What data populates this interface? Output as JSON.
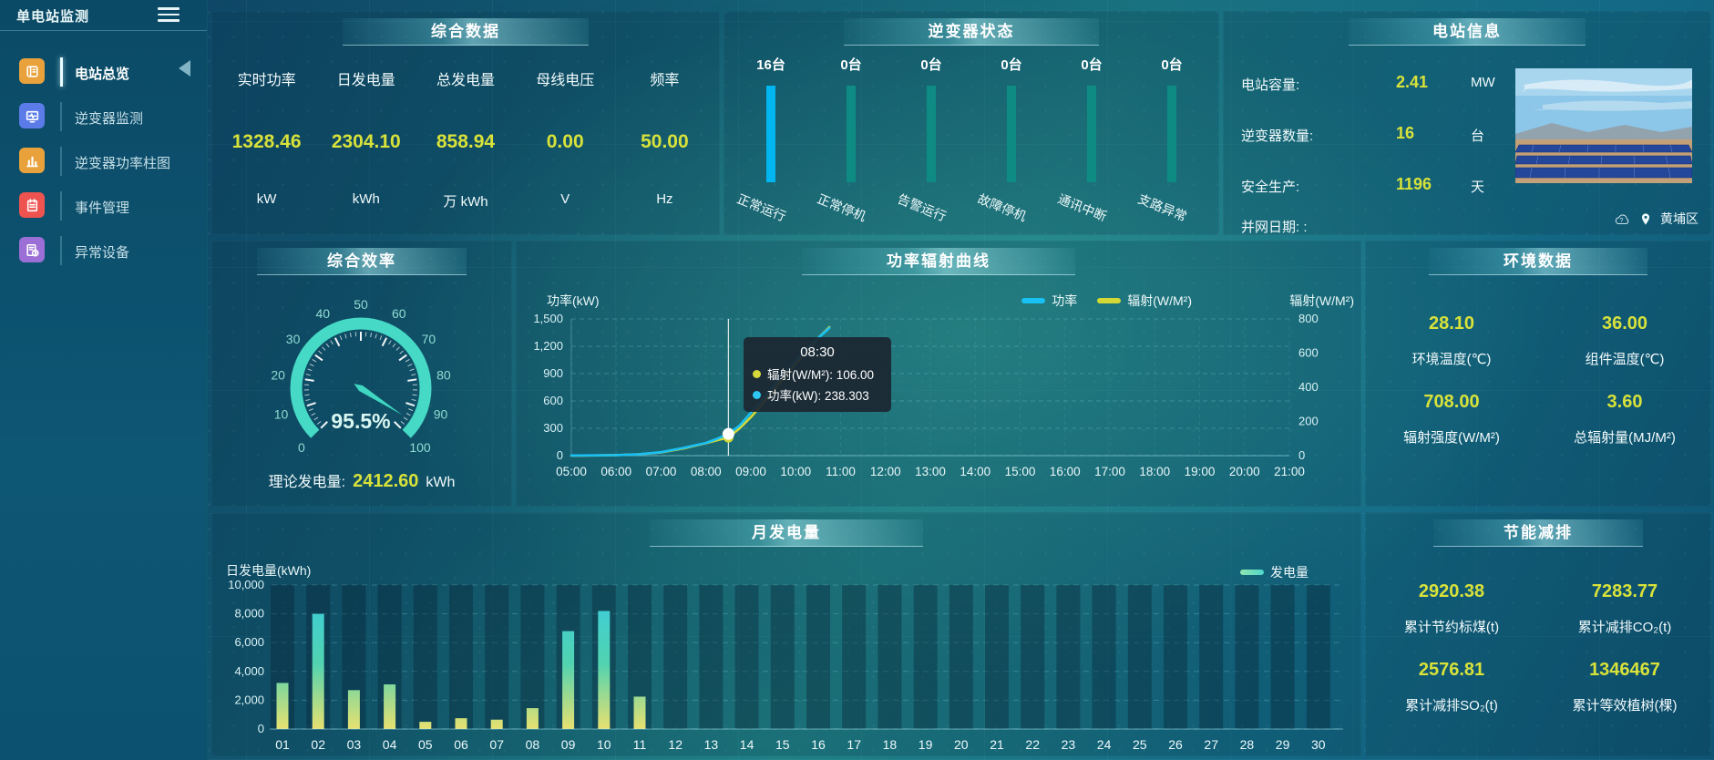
{
  "app": {
    "title": "单电站监测"
  },
  "sidebar": {
    "items": [
      {
        "id": "overview",
        "label": "电站总览",
        "icon": "book-icon",
        "color": "#e9a23b",
        "active": true
      },
      {
        "id": "inverter-monitor",
        "label": "逆变器监测",
        "icon": "monitor-icon",
        "color": "#5b7ce8",
        "active": false
      },
      {
        "id": "inverter-power",
        "label": "逆变器功率柱图",
        "icon": "bar-chart-icon",
        "color": "#e9a23b",
        "active": false
      },
      {
        "id": "event-manage",
        "label": "事件管理",
        "icon": "notebook-icon",
        "color": "#ef5350",
        "active": false
      },
      {
        "id": "abnormal-device",
        "label": "异常设备",
        "icon": "device-alert-icon",
        "color": "#9b6fd6",
        "active": false
      }
    ]
  },
  "summary": {
    "title": "综合数据",
    "metrics": [
      {
        "label": "实时功率",
        "value": "1328.46",
        "unit": "kW"
      },
      {
        "label": "日发电量",
        "value": "2304.10",
        "unit": "kWh"
      },
      {
        "label": "总发电量",
        "value": "858.94",
        "unit": "万 kWh"
      },
      {
        "label": "母线电压",
        "value": "0.00",
        "unit": "V"
      },
      {
        "label": "频率",
        "value": "50.00",
        "unit": "Hz"
      }
    ]
  },
  "inverter_status": {
    "title": "逆变器状态",
    "colors": {
      "highlight": "#00b6f0",
      "normal": "#0e8c83"
    },
    "items": [
      {
        "count": "16台",
        "label": "正常运行",
        "highlight": true
      },
      {
        "count": "0台",
        "label": "正常停机",
        "highlight": false
      },
      {
        "count": "0台",
        "label": "告警运行",
        "highlight": false
      },
      {
        "count": "0台",
        "label": "故障停机",
        "highlight": false
      },
      {
        "count": "0台",
        "label": "通讯中断",
        "highlight": false
      },
      {
        "count": "0台",
        "label": "支路异常",
        "highlight": false
      }
    ]
  },
  "station_info": {
    "title": "电站信息",
    "rows": [
      {
        "label": "电站容量:",
        "value": "2.41",
        "unit": "MW"
      },
      {
        "label": "逆变器数量:",
        "value": "16",
        "unit": "台"
      },
      {
        "label": "安全生产:",
        "value": "1196",
        "unit": "天"
      },
      {
        "label": "并网日期: :",
        "value": "",
        "unit": ""
      }
    ],
    "location": "黄埔区",
    "photo": "solar-farm-photo"
  },
  "efficiency": {
    "title": "综合效率",
    "value_text": "95.5%",
    "theory_label": "理论发电量:",
    "theory_value": "2412.60",
    "theory_unit": "kWh"
  },
  "power_curve": {
    "title": "功率辐射曲线",
    "tooltip": {
      "time": "08:30",
      "rows": [
        {
          "dot": "#d8d93b",
          "text": "辐射(W/M²): 106.00"
        },
        {
          "dot": "#2ec6f2",
          "text": "功率(kW): 238.303"
        }
      ]
    }
  },
  "environment": {
    "title": "环境数据",
    "metrics": [
      {
        "value": "28.10",
        "label": "环境温度(℃)"
      },
      {
        "value": "36.00",
        "label": "组件温度(℃)"
      },
      {
        "value": "708.00",
        "label": "辐射强度(W/M²)"
      },
      {
        "value": "3.60",
        "label": "总辐射量(MJ/M²)"
      }
    ]
  },
  "monthly": {
    "title": "月发电量",
    "legend": "发电量"
  },
  "savings": {
    "title": "节能减排",
    "metrics": [
      {
        "value": "2920.38",
        "label": "累计节约标煤(t)"
      },
      {
        "value": "7283.77",
        "label": "累计减排CO₂(t)"
      },
      {
        "value": "2576.81",
        "label": "累计减排SO₂(t)"
      },
      {
        "value": "1346467",
        "label": "累计等效植树(棵)"
      }
    ]
  },
  "colors": {
    "accent_yellow": "#d8e23a",
    "line_power": "#19c0f4",
    "line_radiation": "#d4d935",
    "gauge_arc": "#45d9c6",
    "bar_top": "#38cbe0",
    "bar_bottom": "#e8e170"
  },
  "chart_data": [
    {
      "type": "gauge",
      "title": "综合效率",
      "value": 95.5,
      "min": 0,
      "max": 100,
      "unit": "%",
      "tick_step": 10,
      "tick_labels": [
        "0",
        "10",
        "20",
        "30",
        "40",
        "50",
        "60",
        "70",
        "80",
        "90",
        "100"
      ]
    },
    {
      "type": "line",
      "title": "功率辐射曲线",
      "x_ticks": [
        "05:00",
        "06:00",
        "07:00",
        "08:00",
        "09:00",
        "10:00",
        "11:00",
        "12:00",
        "13:00",
        "14:00",
        "15:00",
        "16:00",
        "17:00",
        "18:00",
        "19:00",
        "20:00",
        "21:00"
      ],
      "left_axis": {
        "label": "功率(kW)",
        "min": 0,
        "max": 1500,
        "step": 300
      },
      "right_axis": {
        "label": "辐射(W/M²)",
        "min": 0,
        "max": 800,
        "step": 200
      },
      "grid": "dashed",
      "legend_position": "top-right",
      "series": [
        {
          "name": "功率",
          "axis": "left",
          "color": "#19c0f4",
          "points": [
            [
              5,
              2
            ],
            [
              5.5,
              3
            ],
            [
              6,
              6
            ],
            [
              6.5,
              14
            ],
            [
              7,
              38
            ],
            [
              7.5,
              85
            ],
            [
              8,
              140
            ],
            [
              8.25,
              185
            ],
            [
              8.5,
              238.303
            ],
            [
              8.75,
              330
            ],
            [
              9,
              470
            ],
            [
              9.25,
              610
            ],
            [
              9.5,
              760
            ],
            [
              9.75,
              900
            ],
            [
              10,
              1040
            ],
            [
              10.25,
              1170
            ],
            [
              10.5,
              1290
            ],
            [
              10.75,
              1400
            ]
          ]
        },
        {
          "name": "辐射(W/M²)",
          "axis": "right",
          "color": "#d4d935",
          "points": [
            [
              5,
              0
            ],
            [
              5.5,
              1
            ],
            [
              6,
              3
            ],
            [
              6.5,
              8
            ],
            [
              7,
              19
            ],
            [
              7.5,
              42
            ],
            [
              8,
              73
            ],
            [
              8.25,
              90
            ],
            [
              8.5,
              106
            ],
            [
              8.75,
              160
            ],
            [
              9,
              225
            ],
            [
              9.25,
              300
            ],
            [
              9.5,
              380
            ],
            [
              9.75,
              460
            ],
            [
              10,
              540
            ],
            [
              10.25,
              615
            ],
            [
              10.5,
              688
            ],
            [
              10.75,
              752
            ]
          ]
        }
      ],
      "marker": {
        "x": 8.5,
        "time": "08:30",
        "power": 238.303,
        "radiation": 106
      }
    },
    {
      "type": "bar",
      "title": "月发电量",
      "ylabel": "日发电量(kWh)",
      "ylim": [
        0,
        10000
      ],
      "ytick_step": 2000,
      "series_name": "发电量",
      "categories": [
        "01",
        "02",
        "03",
        "04",
        "05",
        "06",
        "07",
        "08",
        "09",
        "10",
        "11",
        "12",
        "13",
        "14",
        "15",
        "16",
        "17",
        "18",
        "19",
        "20",
        "21",
        "22",
        "23",
        "24",
        "25",
        "26",
        "27",
        "28",
        "29",
        "30"
      ],
      "values": [
        3200,
        8000,
        2700,
        3100,
        500,
        750,
        650,
        1450,
        6800,
        8200,
        2250,
        0,
        0,
        0,
        0,
        0,
        0,
        0,
        0,
        0,
        0,
        0,
        0,
        0,
        0,
        0,
        0,
        0,
        0,
        0
      ]
    }
  ]
}
